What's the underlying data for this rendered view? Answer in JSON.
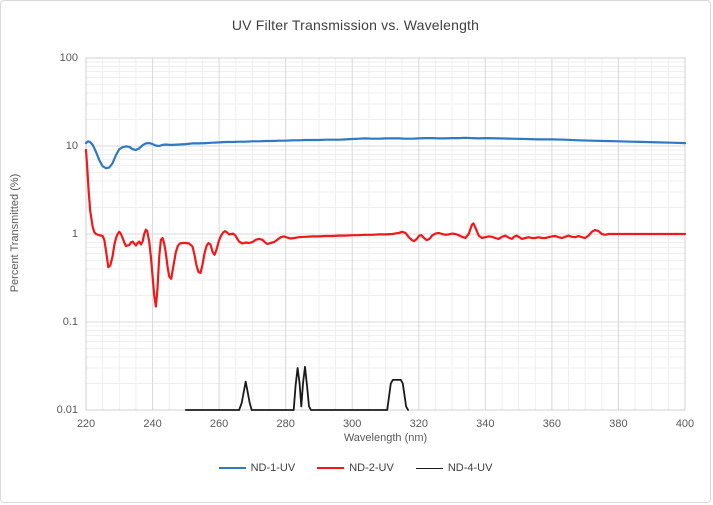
{
  "chart_data": {
    "type": "line",
    "title": "UV Filter Transmission vs. Wavelength",
    "xlabel": "Wavelength (nm)",
    "ylabel": "Percent Transmitted (%)",
    "xlim": [
      220,
      400
    ],
    "ylim": [
      0.01,
      100
    ],
    "yscale": "log",
    "grid": true,
    "legend_position": "bottom",
    "x_ticks": [
      220,
      240,
      260,
      280,
      300,
      320,
      340,
      360,
      380,
      400
    ],
    "x_major_step": 20,
    "x_minor_step": 5,
    "y_ticks": [
      {
        "value": 100,
        "label": "100"
      },
      {
        "value": 10,
        "label": "10"
      },
      {
        "value": 1,
        "label": "1"
      },
      {
        "value": 0.1,
        "label": "0.1"
      },
      {
        "value": 0.01,
        "label": "0.01"
      }
    ],
    "colors": {
      "grid_minor": "#efefef",
      "grid_major": "#d9d9d9",
      "plot_border": "#d0d0d0",
      "axis_text": "#595959",
      "title_text": "#404040",
      "series_blue": "#2e79c0",
      "series_red": "#f01818",
      "series_black": "#1a1a1a"
    },
    "series": [
      {
        "name": "ND-1-UV",
        "color": "#2e79c0",
        "width": 2.2,
        "points": [
          [
            220,
            10.8
          ],
          [
            220.6,
            11.3
          ],
          [
            221.2,
            11.1
          ],
          [
            222,
            10.3
          ],
          [
            223,
            8.6
          ],
          [
            224,
            6.9
          ],
          [
            225,
            5.9
          ],
          [
            226,
            5.6
          ],
          [
            227,
            5.7
          ],
          [
            228,
            6.4
          ],
          [
            229,
            7.9
          ],
          [
            230,
            9.2
          ],
          [
            231,
            9.7
          ],
          [
            232,
            9.9
          ],
          [
            233,
            9.8
          ],
          [
            234,
            9.2
          ],
          [
            235,
            9.0
          ],
          [
            236,
            9.4
          ],
          [
            237,
            10.2
          ],
          [
            238,
            10.7
          ],
          [
            239,
            10.8
          ],
          [
            240,
            10.5
          ],
          [
            241,
            10.1
          ],
          [
            242,
            10.0
          ],
          [
            243,
            10.3
          ],
          [
            244,
            10.4
          ],
          [
            245,
            10.3
          ],
          [
            246,
            10.3
          ],
          [
            248,
            10.4
          ],
          [
            250,
            10.5
          ],
          [
            252,
            10.7
          ],
          [
            254,
            10.7
          ],
          [
            256,
            10.8
          ],
          [
            258,
            10.9
          ],
          [
            260,
            11.0
          ],
          [
            262,
            11.1
          ],
          [
            264,
            11.1
          ],
          [
            266,
            11.2
          ],
          [
            268,
            11.2
          ],
          [
            270,
            11.3
          ],
          [
            272,
            11.3
          ],
          [
            274,
            11.4
          ],
          [
            276,
            11.4
          ],
          [
            278,
            11.5
          ],
          [
            280,
            11.5
          ],
          [
            282,
            11.6
          ],
          [
            284,
            11.6
          ],
          [
            286,
            11.7
          ],
          [
            288,
            11.7
          ],
          [
            290,
            11.7
          ],
          [
            292,
            11.8
          ],
          [
            294,
            11.8
          ],
          [
            296,
            11.8
          ],
          [
            298,
            11.9
          ],
          [
            300,
            12.0
          ],
          [
            302,
            12.1
          ],
          [
            304,
            12.2
          ],
          [
            306,
            12.1
          ],
          [
            308,
            12.1
          ],
          [
            310,
            12.2
          ],
          [
            312,
            12.2
          ],
          [
            314,
            12.2
          ],
          [
            316,
            12.1
          ],
          [
            318,
            12.1
          ],
          [
            320,
            12.2
          ],
          [
            322,
            12.3
          ],
          [
            324,
            12.3
          ],
          [
            326,
            12.2
          ],
          [
            328,
            12.2
          ],
          [
            330,
            12.3
          ],
          [
            332,
            12.3
          ],
          [
            334,
            12.4
          ],
          [
            336,
            12.3
          ],
          [
            338,
            12.2
          ],
          [
            340,
            12.3
          ],
          [
            344,
            12.2
          ],
          [
            348,
            12.1
          ],
          [
            352,
            12.0
          ],
          [
            356,
            11.9
          ],
          [
            360,
            11.9
          ],
          [
            364,
            11.8
          ],
          [
            368,
            11.6
          ],
          [
            372,
            11.5
          ],
          [
            376,
            11.4
          ],
          [
            380,
            11.3
          ],
          [
            384,
            11.2
          ],
          [
            388,
            11.1
          ],
          [
            392,
            11.0
          ],
          [
            396,
            10.9
          ],
          [
            400,
            10.8
          ]
        ]
      },
      {
        "name": "ND-2-UV",
        "color": "#f01818",
        "width": 2.2,
        "points": [
          [
            220,
            9.0
          ],
          [
            220.4,
            5.5
          ],
          [
            220.8,
            3.0
          ],
          [
            221.3,
            1.8
          ],
          [
            222,
            1.2
          ],
          [
            222.5,
            1.05
          ],
          [
            223,
            1.0
          ],
          [
            224,
            0.97
          ],
          [
            225,
            0.95
          ],
          [
            225.5,
            0.86
          ],
          [
            226,
            0.65
          ],
          [
            226.7,
            0.42
          ],
          [
            227.3,
            0.44
          ],
          [
            228,
            0.56
          ],
          [
            228.5,
            0.75
          ],
          [
            229,
            0.9
          ],
          [
            229.5,
            1.0
          ],
          [
            230,
            1.06
          ],
          [
            230.5,
            1.0
          ],
          [
            231,
            0.9
          ],
          [
            231.5,
            0.8
          ],
          [
            232,
            0.73
          ],
          [
            233,
            0.75
          ],
          [
            233.5,
            0.8
          ],
          [
            234,
            0.82
          ],
          [
            234.5,
            0.78
          ],
          [
            235,
            0.74
          ],
          [
            235.5,
            0.79
          ],
          [
            236,
            0.82
          ],
          [
            236.5,
            0.76
          ],
          [
            237,
            0.82
          ],
          [
            237.5,
            1.0
          ],
          [
            238,
            1.12
          ],
          [
            238.4,
            1.08
          ],
          [
            239,
            0.82
          ],
          [
            239.5,
            0.55
          ],
          [
            240,
            0.33
          ],
          [
            240.5,
            0.2
          ],
          [
            241,
            0.15
          ],
          [
            241.5,
            0.24
          ],
          [
            242,
            0.55
          ],
          [
            242.5,
            0.86
          ],
          [
            243,
            0.9
          ],
          [
            243.5,
            0.78
          ],
          [
            244,
            0.6
          ],
          [
            244.5,
            0.43
          ],
          [
            245,
            0.33
          ],
          [
            245.6,
            0.31
          ],
          [
            246.2,
            0.42
          ],
          [
            247,
            0.62
          ],
          [
            247.6,
            0.73
          ],
          [
            248.2,
            0.78
          ],
          [
            249,
            0.79
          ],
          [
            250,
            0.79
          ],
          [
            251,
            0.78
          ],
          [
            252,
            0.72
          ],
          [
            252.6,
            0.58
          ],
          [
            253.2,
            0.44
          ],
          [
            253.8,
            0.37
          ],
          [
            254.4,
            0.36
          ],
          [
            255,
            0.45
          ],
          [
            255.6,
            0.6
          ],
          [
            256.2,
            0.73
          ],
          [
            256.8,
            0.79
          ],
          [
            257.4,
            0.76
          ],
          [
            258,
            0.63
          ],
          [
            258.6,
            0.58
          ],
          [
            259.2,
            0.66
          ],
          [
            260,
            0.85
          ],
          [
            260.6,
            0.96
          ],
          [
            261.2,
            1.04
          ],
          [
            261.8,
            1.08
          ],
          [
            262.4,
            1.04
          ],
          [
            263,
            0.99
          ],
          [
            263.6,
            1.0
          ],
          [
            264.2,
            1.01
          ],
          [
            264.8,
            0.97
          ],
          [
            265.5,
            0.88
          ],
          [
            266,
            0.82
          ],
          [
            267,
            0.78
          ],
          [
            268,
            0.8
          ],
          [
            269,
            0.79
          ],
          [
            270,
            0.81
          ],
          [
            271,
            0.86
          ],
          [
            272,
            0.88
          ],
          [
            273,
            0.86
          ],
          [
            274,
            0.79
          ],
          [
            274.6,
            0.77
          ],
          [
            275.4,
            0.79
          ],
          [
            276.5,
            0.81
          ],
          [
            277.5,
            0.86
          ],
          [
            278.5,
            0.92
          ],
          [
            279.5,
            0.94
          ],
          [
            280.5,
            0.91
          ],
          [
            281.5,
            0.89
          ],
          [
            282.5,
            0.9
          ],
          [
            284,
            0.92
          ],
          [
            286,
            0.93
          ],
          [
            288,
            0.94
          ],
          [
            290,
            0.94
          ],
          [
            292,
            0.95
          ],
          [
            294,
            0.95
          ],
          [
            296,
            0.96
          ],
          [
            298,
            0.96
          ],
          [
            300,
            0.97
          ],
          [
            302,
            0.97
          ],
          [
            304,
            0.98
          ],
          [
            306,
            0.98
          ],
          [
            308,
            0.99
          ],
          [
            310,
            0.99
          ],
          [
            312,
            1.0
          ],
          [
            314,
            1.03
          ],
          [
            315,
            1.06
          ],
          [
            316,
            1.03
          ],
          [
            317,
            0.92
          ],
          [
            318,
            0.85
          ],
          [
            318.6,
            0.83
          ],
          [
            319.4,
            0.88
          ],
          [
            320.2,
            0.96
          ],
          [
            320.8,
            0.97
          ],
          [
            321.6,
            0.9
          ],
          [
            322.4,
            0.85
          ],
          [
            323.2,
            0.88
          ],
          [
            324,
            0.96
          ],
          [
            325,
            1.01
          ],
          [
            326,
            1.03
          ],
          [
            327,
            1.0
          ],
          [
            328,
            0.98
          ],
          [
            329,
            0.99
          ],
          [
            330,
            1.01
          ],
          [
            331,
            1.0
          ],
          [
            332,
            0.97
          ],
          [
            333,
            0.93
          ],
          [
            334,
            0.9
          ],
          [
            335,
            1.0
          ],
          [
            336,
            1.28
          ],
          [
            336.4,
            1.32
          ],
          [
            337,
            1.18
          ],
          [
            338,
            0.96
          ],
          [
            339,
            0.9
          ],
          [
            340,
            0.92
          ],
          [
            341,
            0.94
          ],
          [
            342,
            0.93
          ],
          [
            343,
            0.9
          ],
          [
            344,
            0.88
          ],
          [
            345,
            0.93
          ],
          [
            346,
            0.96
          ],
          [
            347,
            0.91
          ],
          [
            348,
            0.88
          ],
          [
            348.6,
            0.93
          ],
          [
            349.4,
            0.96
          ],
          [
            350.2,
            0.92
          ],
          [
            351,
            0.88
          ],
          [
            352,
            0.9
          ],
          [
            353,
            0.92
          ],
          [
            354,
            0.9
          ],
          [
            355,
            0.9
          ],
          [
            356,
            0.92
          ],
          [
            357,
            0.9
          ],
          [
            358,
            0.9
          ],
          [
            359,
            0.92
          ],
          [
            360,
            0.94
          ],
          [
            361,
            0.95
          ],
          [
            362,
            0.92
          ],
          [
            363,
            0.9
          ],
          [
            364,
            0.93
          ],
          [
            365,
            0.96
          ],
          [
            366,
            0.93
          ],
          [
            367,
            0.92
          ],
          [
            368,
            0.95
          ],
          [
            369,
            0.92
          ],
          [
            370,
            0.9
          ],
          [
            371,
            0.96
          ],
          [
            372,
            1.06
          ],
          [
            373,
            1.11
          ],
          [
            374,
            1.08
          ],
          [
            375,
            1.0
          ],
          [
            376,
            0.98
          ],
          [
            377,
            1.0
          ],
          [
            378,
            1.0
          ],
          [
            380,
            1.0
          ],
          [
            384,
            1.0
          ],
          [
            388,
            1.0
          ],
          [
            392,
            1.0
          ],
          [
            396,
            1.0
          ],
          [
            400,
            1.0
          ]
        ]
      },
      {
        "name": "ND-4-UV",
        "color": "#1a1a1a",
        "width": 1.8,
        "points": [
          [
            250,
            0.01
          ],
          [
            266,
            0.01
          ],
          [
            266.8,
            0.012
          ],
          [
            268,
            0.021
          ],
          [
            269.2,
            0.012
          ],
          [
            269.8,
            0.01
          ],
          [
            282.4,
            0.01
          ],
          [
            283,
            0.019
          ],
          [
            283.6,
            0.03
          ],
          [
            284.2,
            0.02
          ],
          [
            284.7,
            0.011
          ],
          [
            285.2,
            0.02
          ],
          [
            285.8,
            0.031
          ],
          [
            286.4,
            0.019
          ],
          [
            287,
            0.011
          ],
          [
            287.6,
            0.01
          ],
          [
            310.5,
            0.01
          ],
          [
            311.6,
            0.02
          ],
          [
            312.2,
            0.022
          ],
          [
            314.6,
            0.022
          ],
          [
            315.2,
            0.02
          ],
          [
            316.2,
            0.011
          ],
          [
            316.8,
            0.01
          ]
        ]
      }
    ]
  }
}
